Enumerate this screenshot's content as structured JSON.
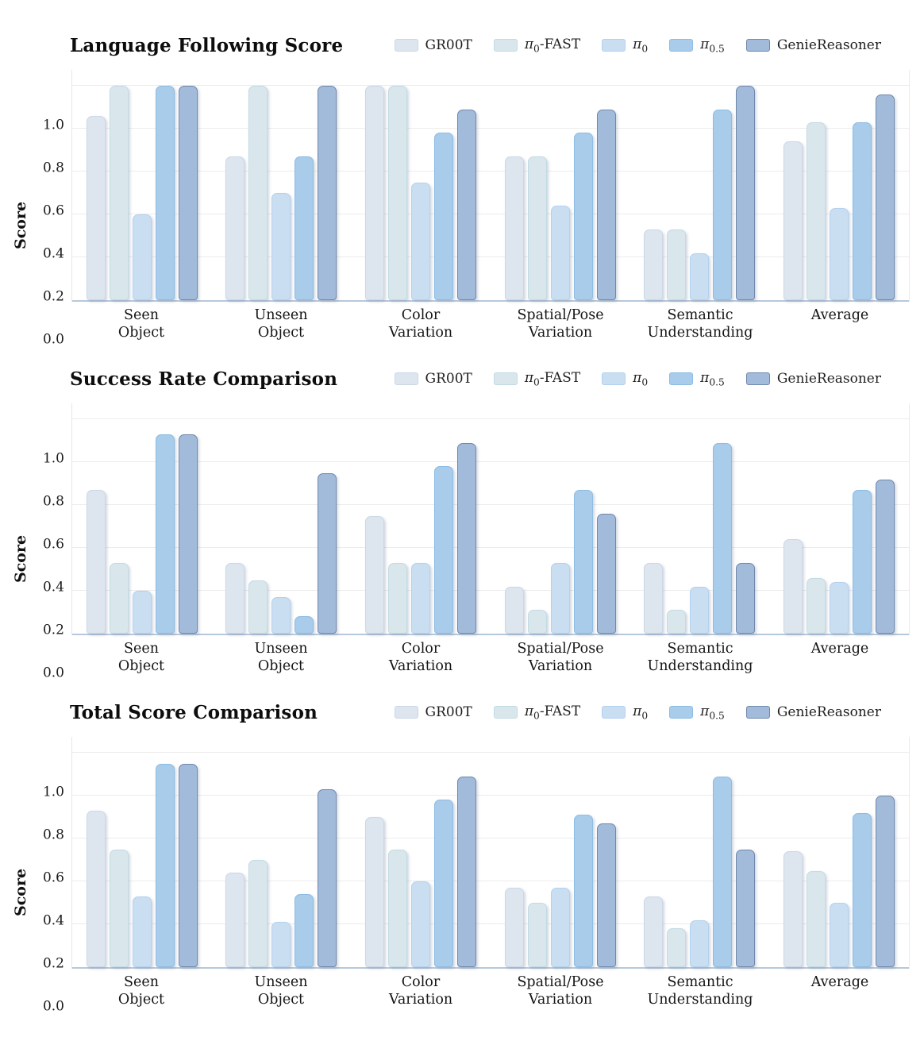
{
  "page": {
    "background": "#ffffff"
  },
  "series_styles": [
    {
      "name": "GR00T",
      "label": "GR00T",
      "color": "#dde5ef",
      "border": "#cbd8e7"
    },
    {
      "name": "pi0-FAST",
      "label": "π_{0}-FAST",
      "color": "#d9e7ec",
      "border": "#c2dbe3"
    },
    {
      "name": "pi0",
      "label": "π_{0}",
      "color": "#cadef2",
      "border": "#b3d1ee"
    },
    {
      "name": "pi0.5",
      "label": "π_{0.5}",
      "color": "#a8ccea",
      "border": "#8dbce4"
    },
    {
      "name": "GenieReasoner",
      "label": "GenieReasoner",
      "color": "#a3bbda",
      "border": "#7188ac"
    }
  ],
  "categories_display": [
    [
      "Seen",
      "Object"
    ],
    [
      "Unseen",
      "Object"
    ],
    [
      "Color",
      "Variation"
    ],
    [
      "Spatial/Pose",
      "Variation"
    ],
    [
      "Semantic",
      "Understanding"
    ],
    [
      "Average"
    ]
  ],
  "chart_data": [
    {
      "type": "bar",
      "title": "Language Following Score",
      "ylabel": "Score",
      "xlabel": "",
      "ylim": [
        0,
        1.08
      ],
      "yticks": [
        0.0,
        0.2,
        0.4,
        0.6,
        0.8,
        1.0
      ],
      "grid": true,
      "legend_position": "top-right",
      "categories": [
        "Seen Object",
        "Unseen Object",
        "Color Variation",
        "Spatial/Pose Variation",
        "Semantic Understanding",
        "Average"
      ],
      "series": [
        {
          "name": "GR00T",
          "values": [
            0.86,
            0.67,
            1.0,
            0.67,
            0.33,
            0.74
          ]
        },
        {
          "name": "pi0-FAST",
          "values": [
            1.0,
            1.0,
            1.0,
            0.67,
            0.33,
            0.83
          ]
        },
        {
          "name": "pi0",
          "values": [
            0.4,
            0.5,
            0.55,
            0.44,
            0.22,
            0.43
          ]
        },
        {
          "name": "pi0.5",
          "values": [
            1.0,
            0.67,
            0.78,
            0.78,
            0.89,
            0.83
          ]
        },
        {
          "name": "GenieReasoner",
          "values": [
            1.0,
            1.0,
            0.89,
            0.89,
            1.0,
            0.96
          ]
        }
      ]
    },
    {
      "type": "bar",
      "title": "Success Rate Comparison",
      "ylabel": "Score",
      "xlabel": "",
      "ylim": [
        0,
        1.08
      ],
      "yticks": [
        0.0,
        0.2,
        0.4,
        0.6,
        0.8,
        1.0
      ],
      "grid": true,
      "legend_position": "top-right",
      "categories": [
        "Seen Object",
        "Unseen Object",
        "Color Variation",
        "Spatial/Pose Variation",
        "Semantic Understanding",
        "Average"
      ],
      "series": [
        {
          "name": "GR00T",
          "values": [
            0.67,
            0.33,
            0.55,
            0.22,
            0.33,
            0.44
          ]
        },
        {
          "name": "pi0-FAST",
          "values": [
            0.33,
            0.25,
            0.33,
            0.11,
            0.11,
            0.26
          ]
        },
        {
          "name": "pi0",
          "values": [
            0.2,
            0.17,
            0.33,
            0.33,
            0.22,
            0.24
          ]
        },
        {
          "name": "pi0.5",
          "values": [
            0.93,
            0.08,
            0.78,
            0.67,
            0.89,
            0.67
          ]
        },
        {
          "name": "GenieReasoner",
          "values": [
            0.93,
            0.75,
            0.89,
            0.56,
            0.33,
            0.72
          ]
        }
      ]
    },
    {
      "type": "bar",
      "title": "Total Score Comparison",
      "ylabel": "Score",
      "xlabel": "",
      "ylim": [
        0,
        1.08
      ],
      "yticks": [
        0.0,
        0.2,
        0.4,
        0.6,
        0.8,
        1.0
      ],
      "grid": true,
      "legend_position": "top-right",
      "categories": [
        "Seen Object",
        "Unseen Object",
        "Color Variation",
        "Spatial/Pose Variation",
        "Semantic Understanding",
        "Average"
      ],
      "series": [
        {
          "name": "GR00T",
          "values": [
            0.73,
            0.44,
            0.7,
            0.37,
            0.33,
            0.54
          ]
        },
        {
          "name": "pi0-FAST",
          "values": [
            0.55,
            0.5,
            0.55,
            0.3,
            0.18,
            0.45
          ]
        },
        {
          "name": "pi0",
          "values": [
            0.33,
            0.21,
            0.4,
            0.37,
            0.22,
            0.3
          ]
        },
        {
          "name": "pi0.5",
          "values": [
            0.95,
            0.34,
            0.78,
            0.71,
            0.89,
            0.72
          ]
        },
        {
          "name": "GenieReasoner",
          "values": [
            0.95,
            0.83,
            0.89,
            0.67,
            0.55,
            0.8
          ]
        }
      ]
    }
  ]
}
